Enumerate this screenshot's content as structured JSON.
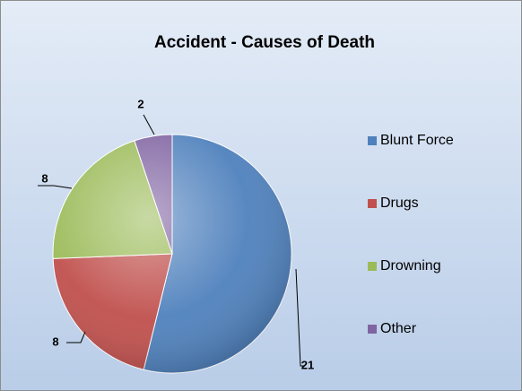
{
  "chart_data": {
    "type": "pie",
    "title": "Accident - Causes of Death",
    "categories": [
      "Blunt Force",
      "Drugs",
      "Drowning",
      "Other"
    ],
    "values": [
      21,
      8,
      8,
      2
    ],
    "colors": [
      "#4f81bd",
      "#c0504d",
      "#9bbb59",
      "#8064a2"
    ],
    "legend": "right"
  }
}
